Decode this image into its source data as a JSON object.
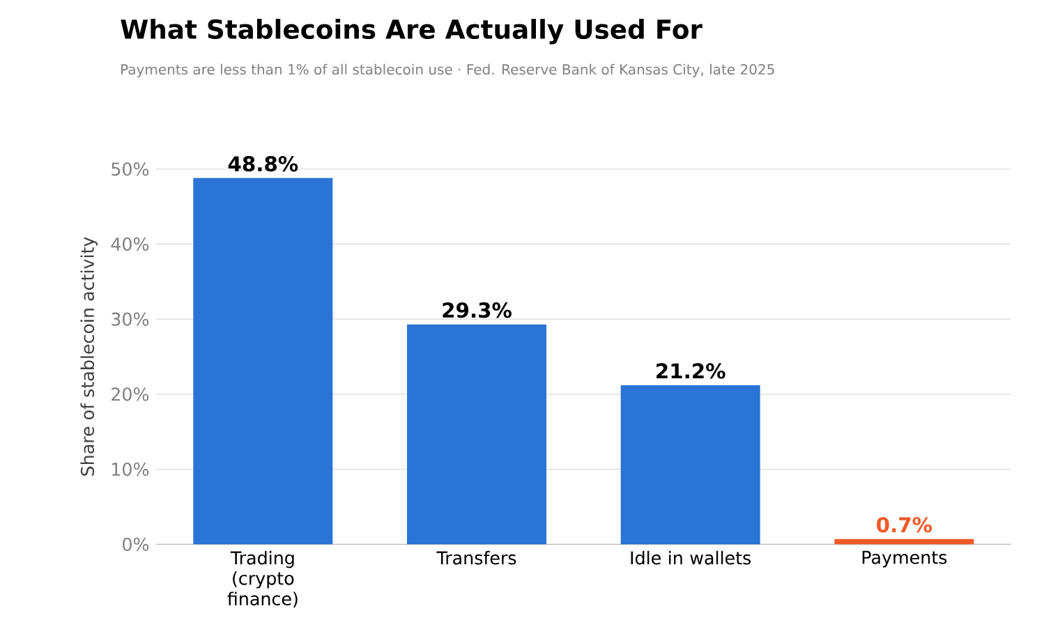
{
  "chart_data": {
    "type": "bar",
    "title": "What Stablecoins Are Actually Used For",
    "subtitle": "Payments are less than 1% of all stablecoin use  ·  Fed. Reserve Bank of Kansas City, late 2025",
    "ylabel": "Share of stablecoin activity",
    "categories": [
      "Trading (crypto finance)",
      "Transfers",
      "Idle in wallets",
      "Payments"
    ],
    "values": [
      48.8,
      29.3,
      21.2,
      0.7
    ],
    "value_labels": [
      "48.8%",
      "29.3%",
      "21.2%",
      "0.7%"
    ],
    "colors": [
      "#2a74d6",
      "#2a74d6",
      "#2a74d6",
      "#f05a28"
    ],
    "ylim": [
      0,
      50
    ],
    "yticks": [
      {
        "value": 0,
        "label": "0%"
      },
      {
        "value": 10,
        "label": "10%"
      },
      {
        "value": 20,
        "label": "20%"
      },
      {
        "value": 30,
        "label": "30%"
      },
      {
        "value": 40,
        "label": "40%"
      },
      {
        "value": 50,
        "label": "50%"
      }
    ],
    "grid": "y"
  }
}
